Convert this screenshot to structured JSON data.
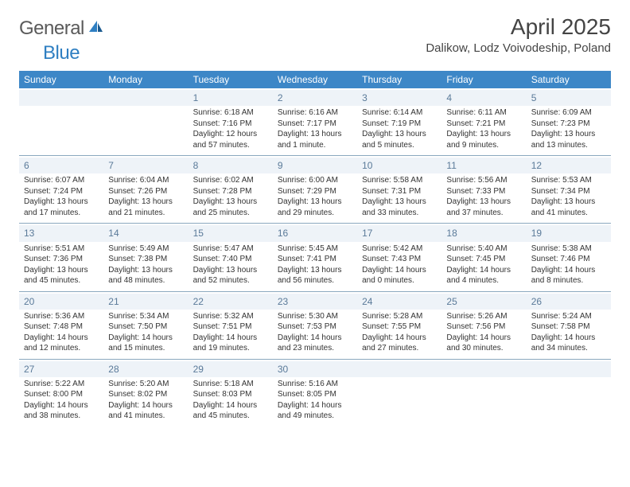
{
  "logo": {
    "general": "General",
    "blue": "Blue"
  },
  "header": {
    "title": "April 2025",
    "location": "Dalikow, Lodz Voivodeship, Poland"
  },
  "colors": {
    "header_bg": "#3d87c7",
    "header_text": "#ffffff",
    "daynum_bg": "#eef3f8",
    "daynum_text": "#5a7a99",
    "border": "#8aa8bf",
    "logo_blue": "#2f7fc2",
    "logo_gray": "#5a5a5a"
  },
  "weekdays": [
    "Sunday",
    "Monday",
    "Tuesday",
    "Wednesday",
    "Thursday",
    "Friday",
    "Saturday"
  ],
  "weeks": [
    [
      null,
      null,
      {
        "d": "1",
        "sr": "Sunrise: 6:18 AM",
        "ss": "Sunset: 7:16 PM",
        "dl1": "Daylight: 12 hours",
        "dl2": "and 57 minutes."
      },
      {
        "d": "2",
        "sr": "Sunrise: 6:16 AM",
        "ss": "Sunset: 7:17 PM",
        "dl1": "Daylight: 13 hours",
        "dl2": "and 1 minute."
      },
      {
        "d": "3",
        "sr": "Sunrise: 6:14 AM",
        "ss": "Sunset: 7:19 PM",
        "dl1": "Daylight: 13 hours",
        "dl2": "and 5 minutes."
      },
      {
        "d": "4",
        "sr": "Sunrise: 6:11 AM",
        "ss": "Sunset: 7:21 PM",
        "dl1": "Daylight: 13 hours",
        "dl2": "and 9 minutes."
      },
      {
        "d": "5",
        "sr": "Sunrise: 6:09 AM",
        "ss": "Sunset: 7:23 PM",
        "dl1": "Daylight: 13 hours",
        "dl2": "and 13 minutes."
      }
    ],
    [
      {
        "d": "6",
        "sr": "Sunrise: 6:07 AM",
        "ss": "Sunset: 7:24 PM",
        "dl1": "Daylight: 13 hours",
        "dl2": "and 17 minutes."
      },
      {
        "d": "7",
        "sr": "Sunrise: 6:04 AM",
        "ss": "Sunset: 7:26 PM",
        "dl1": "Daylight: 13 hours",
        "dl2": "and 21 minutes."
      },
      {
        "d": "8",
        "sr": "Sunrise: 6:02 AM",
        "ss": "Sunset: 7:28 PM",
        "dl1": "Daylight: 13 hours",
        "dl2": "and 25 minutes."
      },
      {
        "d": "9",
        "sr": "Sunrise: 6:00 AM",
        "ss": "Sunset: 7:29 PM",
        "dl1": "Daylight: 13 hours",
        "dl2": "and 29 minutes."
      },
      {
        "d": "10",
        "sr": "Sunrise: 5:58 AM",
        "ss": "Sunset: 7:31 PM",
        "dl1": "Daylight: 13 hours",
        "dl2": "and 33 minutes."
      },
      {
        "d": "11",
        "sr": "Sunrise: 5:56 AM",
        "ss": "Sunset: 7:33 PM",
        "dl1": "Daylight: 13 hours",
        "dl2": "and 37 minutes."
      },
      {
        "d": "12",
        "sr": "Sunrise: 5:53 AM",
        "ss": "Sunset: 7:34 PM",
        "dl1": "Daylight: 13 hours",
        "dl2": "and 41 minutes."
      }
    ],
    [
      {
        "d": "13",
        "sr": "Sunrise: 5:51 AM",
        "ss": "Sunset: 7:36 PM",
        "dl1": "Daylight: 13 hours",
        "dl2": "and 45 minutes."
      },
      {
        "d": "14",
        "sr": "Sunrise: 5:49 AM",
        "ss": "Sunset: 7:38 PM",
        "dl1": "Daylight: 13 hours",
        "dl2": "and 48 minutes."
      },
      {
        "d": "15",
        "sr": "Sunrise: 5:47 AM",
        "ss": "Sunset: 7:40 PM",
        "dl1": "Daylight: 13 hours",
        "dl2": "and 52 minutes."
      },
      {
        "d": "16",
        "sr": "Sunrise: 5:45 AM",
        "ss": "Sunset: 7:41 PM",
        "dl1": "Daylight: 13 hours",
        "dl2": "and 56 minutes."
      },
      {
        "d": "17",
        "sr": "Sunrise: 5:42 AM",
        "ss": "Sunset: 7:43 PM",
        "dl1": "Daylight: 14 hours",
        "dl2": "and 0 minutes."
      },
      {
        "d": "18",
        "sr": "Sunrise: 5:40 AM",
        "ss": "Sunset: 7:45 PM",
        "dl1": "Daylight: 14 hours",
        "dl2": "and 4 minutes."
      },
      {
        "d": "19",
        "sr": "Sunrise: 5:38 AM",
        "ss": "Sunset: 7:46 PM",
        "dl1": "Daylight: 14 hours",
        "dl2": "and 8 minutes."
      }
    ],
    [
      {
        "d": "20",
        "sr": "Sunrise: 5:36 AM",
        "ss": "Sunset: 7:48 PM",
        "dl1": "Daylight: 14 hours",
        "dl2": "and 12 minutes."
      },
      {
        "d": "21",
        "sr": "Sunrise: 5:34 AM",
        "ss": "Sunset: 7:50 PM",
        "dl1": "Daylight: 14 hours",
        "dl2": "and 15 minutes."
      },
      {
        "d": "22",
        "sr": "Sunrise: 5:32 AM",
        "ss": "Sunset: 7:51 PM",
        "dl1": "Daylight: 14 hours",
        "dl2": "and 19 minutes."
      },
      {
        "d": "23",
        "sr": "Sunrise: 5:30 AM",
        "ss": "Sunset: 7:53 PM",
        "dl1": "Daylight: 14 hours",
        "dl2": "and 23 minutes."
      },
      {
        "d": "24",
        "sr": "Sunrise: 5:28 AM",
        "ss": "Sunset: 7:55 PM",
        "dl1": "Daylight: 14 hours",
        "dl2": "and 27 minutes."
      },
      {
        "d": "25",
        "sr": "Sunrise: 5:26 AM",
        "ss": "Sunset: 7:56 PM",
        "dl1": "Daylight: 14 hours",
        "dl2": "and 30 minutes."
      },
      {
        "d": "26",
        "sr": "Sunrise: 5:24 AM",
        "ss": "Sunset: 7:58 PM",
        "dl1": "Daylight: 14 hours",
        "dl2": "and 34 minutes."
      }
    ],
    [
      {
        "d": "27",
        "sr": "Sunrise: 5:22 AM",
        "ss": "Sunset: 8:00 PM",
        "dl1": "Daylight: 14 hours",
        "dl2": "and 38 minutes."
      },
      {
        "d": "28",
        "sr": "Sunrise: 5:20 AM",
        "ss": "Sunset: 8:02 PM",
        "dl1": "Daylight: 14 hours",
        "dl2": "and 41 minutes."
      },
      {
        "d": "29",
        "sr": "Sunrise: 5:18 AM",
        "ss": "Sunset: 8:03 PM",
        "dl1": "Daylight: 14 hours",
        "dl2": "and 45 minutes."
      },
      {
        "d": "30",
        "sr": "Sunrise: 5:16 AM",
        "ss": "Sunset: 8:05 PM",
        "dl1": "Daylight: 14 hours",
        "dl2": "and 49 minutes."
      },
      null,
      null,
      null
    ]
  ]
}
